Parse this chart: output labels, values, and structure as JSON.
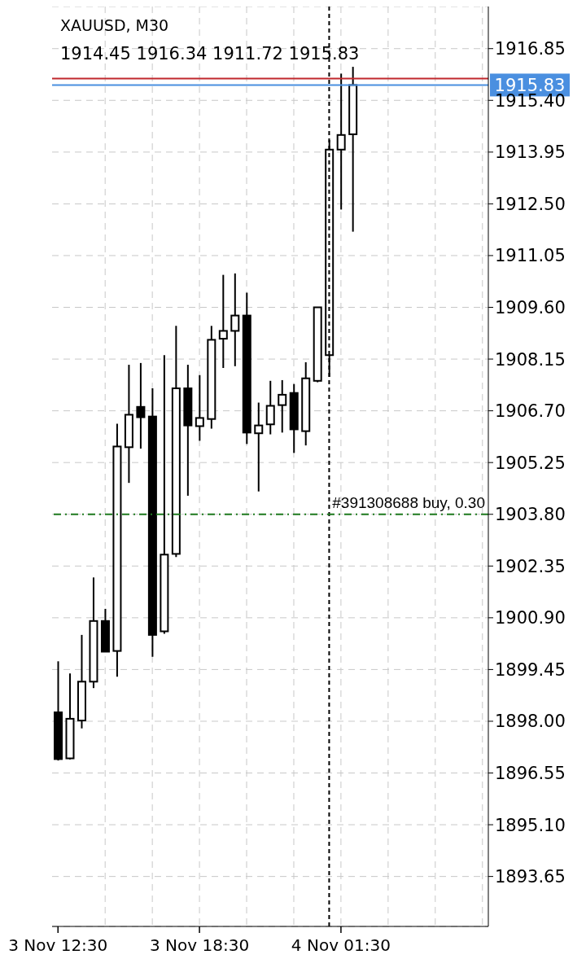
{
  "chart_data": {
    "type": "candlestick",
    "title": "XAUUSD, M30",
    "subtitle": "1914.45 1916.34 1911.72 1915.83",
    "categories": [
      "3 Nov 12:30",
      null,
      null,
      null,
      null,
      null,
      null,
      null,
      null,
      null,
      null,
      null,
      "3 Nov 18:30",
      null,
      null,
      null,
      null,
      null,
      null,
      null,
      null,
      null,
      null,
      null,
      "4 Nov 01:30",
      null,
      null,
      null,
      null,
      null,
      null,
      null,
      null,
      null,
      null,
      null,
      null
    ],
    "ohlc": [
      [
        1898.25,
        1899.68,
        1896.9,
        1896.94
      ],
      [
        1896.96,
        1899.34,
        1896.93,
        1898.07
      ],
      [
        1898.02,
        1900.42,
        1897.8,
        1899.11
      ],
      [
        1899.11,
        1902.03,
        1898.93,
        1900.81
      ],
      [
        1900.81,
        1901.15,
        1899.95,
        1899.95
      ],
      [
        1899.97,
        1906.34,
        1899.25,
        1905.7
      ],
      [
        1905.68,
        1907.99,
        1904.68,
        1906.59
      ],
      [
        1906.81,
        1908.04,
        1905.64,
        1906.52
      ],
      [
        1906.54,
        1907.33,
        1899.81,
        1900.42
      ],
      [
        1900.52,
        1908.26,
        1900.45,
        1902.67
      ],
      [
        1902.69,
        1909.08,
        1902.6,
        1907.33
      ],
      [
        1907.33,
        1907.99,
        1904.32,
        1906.29
      ],
      [
        1906.27,
        1907.7,
        1905.86,
        1906.5
      ],
      [
        1906.47,
        1909.08,
        1906.2,
        1908.69
      ],
      [
        1908.72,
        1910.51,
        1907.9,
        1908.94
      ],
      [
        1908.94,
        1910.55,
        1907.95,
        1909.37
      ],
      [
        1909.37,
        1910.01,
        1905.77,
        1906.09
      ],
      [
        1906.07,
        1906.93,
        1904.44,
        1906.29
      ],
      [
        1906.32,
        1907.54,
        1906.04,
        1906.84
      ],
      [
        1906.86,
        1907.56,
        1906.09,
        1907.15
      ],
      [
        1907.2,
        1907.45,
        1905.52,
        1906.18
      ],
      [
        1906.13,
        1908.06,
        1905.73,
        1907.61
      ],
      [
        1907.54,
        1909.6,
        1907.5,
        1909.6
      ],
      [
        1908.26,
        1914.29,
        1907.65,
        1914.02
      ],
      [
        1914.02,
        1916.15,
        1912.34,
        1914.43
      ],
      [
        1914.45,
        1916.34,
        1911.72,
        1915.83
      ],
      null,
      null,
      null,
      null,
      null,
      null,
      null,
      null,
      null,
      null,
      null
    ],
    "ylim": [
      1892.25,
      1918.03
    ],
    "yticks": [
      1916.85,
      {
        "value": 1915.4,
        "label": "1915.40"
      },
      1913.95,
      {
        "value": 1912.5,
        "label": "1912.50"
      },
      1911.05,
      {
        "value": 1909.6,
        "label": "1909.60"
      },
      1908.15,
      {
        "value": 1906.7,
        "label": "1906.70"
      },
      1905.25,
      {
        "value": 1903.8,
        "label": "1903.80"
      },
      1902.35,
      {
        "value": 1900.9,
        "label": "1900.90"
      },
      1899.45,
      {
        "value": 1898,
        "label": "1898.00"
      },
      1896.55,
      {
        "value": 1895.1,
        "label": "1895.10"
      },
      1893.65
    ],
    "grid": true,
    "legend": false,
    "ref_lines": [
      {
        "axis": "y",
        "value": 1916.01,
        "color": "#c0282d",
        "line_style": "solid"
      },
      {
        "axis": "y",
        "value": 1915.83,
        "label": "1915.83",
        "color": "#4a8fe0",
        "line_style": "solid"
      },
      {
        "axis": "y",
        "value": 1903.8,
        "label": "#391308688 buy, 0.30",
        "color": "#1e7a1e",
        "line_style": "dashed"
      }
    ]
  }
}
